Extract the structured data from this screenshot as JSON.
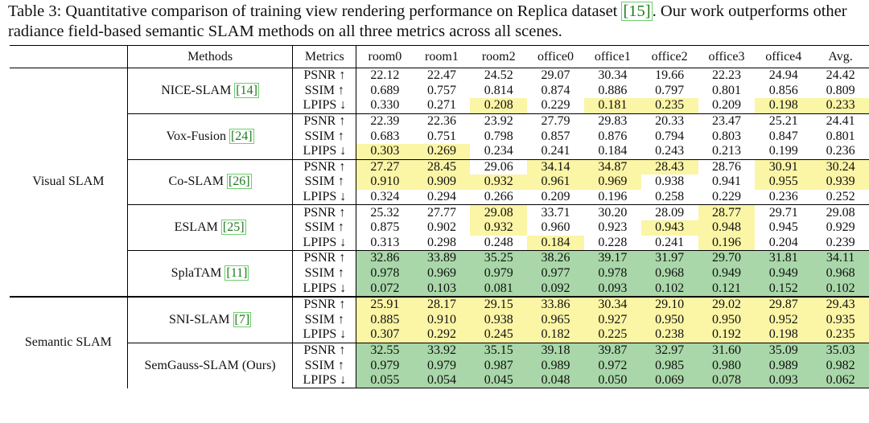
{
  "caption": {
    "prefix": "Table 3: Quantitative comparison of training view rendering performance on Replica dataset ",
    "ref": "[15]",
    "suffix": ". Our work outperforms other radiance field-based semantic SLAM methods on all three metrics across all scenes."
  },
  "headers": {
    "group": "",
    "methods": "Methods",
    "metrics": "Metrics",
    "scenes": [
      "room0",
      "room1",
      "room2",
      "office0",
      "office1",
      "office2",
      "office3",
      "office4",
      "Avg."
    ]
  },
  "metric_labels": [
    "PSNR ↑",
    "SSIM ↑",
    "LPIPS ↓"
  ],
  "groups": [
    {
      "name": "Visual SLAM",
      "methods": [
        {
          "name": "NICE-SLAM",
          "ref": "[14]",
          "rows": [
            {
              "values": [
                "22.12",
                "22.47",
                "24.52",
                "29.07",
                "30.34",
                "19.66",
                "22.23",
                "24.94",
                "24.42"
              ],
              "hl": [
                "",
                "",
                "",
                "",
                "",
                "",
                "",
                "",
                ""
              ]
            },
            {
              "values": [
                "0.689",
                "0.757",
                "0.814",
                "0.874",
                "0.886",
                "0.797",
                "0.801",
                "0.856",
                "0.809"
              ],
              "hl": [
                "",
                "",
                "",
                "",
                "",
                "",
                "",
                "",
                ""
              ]
            },
            {
              "values": [
                "0.330",
                "0.271",
                "0.208",
                "0.229",
                "0.181",
                "0.235",
                "0.209",
                "0.198",
                "0.233"
              ],
              "hl": [
                "",
                "",
                "y",
                "",
                "y",
                "y",
                "",
                "y",
                "y"
              ]
            }
          ]
        },
        {
          "name": "Vox-Fusion",
          "ref": "[24]",
          "rows": [
            {
              "values": [
                "22.39",
                "22.36",
                "23.92",
                "27.79",
                "29.83",
                "20.33",
                "23.47",
                "25.21",
                "24.41"
              ],
              "hl": [
                "",
                "",
                "",
                "",
                "",
                "",
                "",
                "",
                ""
              ]
            },
            {
              "values": [
                "0.683",
                "0.751",
                "0.798",
                "0.857",
                "0.876",
                "0.794",
                "0.803",
                "0.847",
                "0.801"
              ],
              "hl": [
                "",
                "",
                "",
                "",
                "",
                "",
                "",
                "",
                ""
              ]
            },
            {
              "values": [
                "0.303",
                "0.269",
                "0.234",
                "0.241",
                "0.184",
                "0.243",
                "0.213",
                "0.199",
                "0.236"
              ],
              "hl": [
                "y",
                "y",
                "",
                "",
                "",
                "",
                "",
                "",
                ""
              ]
            }
          ]
        },
        {
          "name": "Co-SLAM",
          "ref": "[26]",
          "rows": [
            {
              "values": [
                "27.27",
                "28.45",
                "29.06",
                "34.14",
                "34.87",
                "28.43",
                "28.76",
                "30.91",
                "30.24"
              ],
              "hl": [
                "y",
                "y",
                "",
                "y",
                "y",
                "y",
                "",
                "y",
                "y"
              ]
            },
            {
              "values": [
                "0.910",
                "0.909",
                "0.932",
                "0.961",
                "0.969",
                "0.938",
                "0.941",
                "0.955",
                "0.939"
              ],
              "hl": [
                "y",
                "y",
                "y",
                "y",
                "y",
                "",
                "",
                "y",
                "y"
              ]
            },
            {
              "values": [
                "0.324",
                "0.294",
                "0.266",
                "0.209",
                "0.196",
                "0.258",
                "0.229",
                "0.236",
                "0.252"
              ],
              "hl": [
                "",
                "",
                "",
                "",
                "",
                "",
                "",
                "",
                ""
              ]
            }
          ]
        },
        {
          "name": "ESLAM",
          "ref": "[25]",
          "rows": [
            {
              "values": [
                "25.32",
                "27.77",
                "29.08",
                "33.71",
                "30.20",
                "28.09",
                "28.77",
                "29.71",
                "29.08"
              ],
              "hl": [
                "",
                "",
                "y",
                "",
                "",
                "",
                "y",
                "",
                ""
              ]
            },
            {
              "values": [
                "0.875",
                "0.902",
                "0.932",
                "0.960",
                "0.923",
                "0.943",
                "0.948",
                "0.945",
                "0.929"
              ],
              "hl": [
                "",
                "",
                "y",
                "",
                "",
                "y",
                "y",
                "",
                ""
              ]
            },
            {
              "values": [
                "0.313",
                "0.298",
                "0.248",
                "0.184",
                "0.228",
                "0.241",
                "0.196",
                "0.204",
                "0.239"
              ],
              "hl": [
                "",
                "",
                "",
                "y",
                "",
                "",
                "y",
                "",
                ""
              ]
            }
          ]
        },
        {
          "name": "SplaTAM",
          "ref": "[11]",
          "rows": [
            {
              "values": [
                "32.86",
                "33.89",
                "35.25",
                "38.26",
                "39.17",
                "31.97",
                "29.70",
                "31.81",
                "34.11"
              ],
              "hl": [
                "g",
                "g",
                "g",
                "g",
                "g",
                "g",
                "g",
                "g",
                "g"
              ]
            },
            {
              "values": [
                "0.978",
                "0.969",
                "0.979",
                "0.977",
                "0.978",
                "0.968",
                "0.949",
                "0.949",
                "0.968"
              ],
              "hl": [
                "g",
                "g",
                "g",
                "g",
                "g",
                "g",
                "g",
                "g",
                "g"
              ]
            },
            {
              "values": [
                "0.072",
                "0.103",
                "0.081",
                "0.092",
                "0.093",
                "0.102",
                "0.121",
                "0.152",
                "0.102"
              ],
              "hl": [
                "g",
                "g",
                "g",
                "g",
                "g",
                "g",
                "g",
                "g",
                "g"
              ]
            }
          ]
        }
      ]
    },
    {
      "name": "Semantic SLAM",
      "methods": [
        {
          "name": "SNI-SLAM",
          "ref": "[7]",
          "rows": [
            {
              "values": [
                "25.91",
                "28.17",
                "29.15",
                "33.86",
                "30.34",
                "29.10",
                "29.02",
                "29.87",
                "29.43"
              ],
              "hl": [
                "y",
                "y",
                "y",
                "y",
                "y",
                "y",
                "y",
                "y",
                "y"
              ]
            },
            {
              "values": [
                "0.885",
                "0.910",
                "0.938",
                "0.965",
                "0.927",
                "0.950",
                "0.950",
                "0.952",
                "0.935"
              ],
              "hl": [
                "y",
                "y",
                "y",
                "y",
                "y",
                "y",
                "y",
                "y",
                "y"
              ]
            },
            {
              "values": [
                "0.307",
                "0.292",
                "0.245",
                "0.182",
                "0.225",
                "0.238",
                "0.192",
                "0.198",
                "0.235"
              ],
              "hl": [
                "y",
                "y",
                "y",
                "y",
                "y",
                "y",
                "y",
                "y",
                "y"
              ]
            }
          ]
        },
        {
          "name": "SemGauss-SLAM (Ours)",
          "ref": "",
          "rows": [
            {
              "values": [
                "32.55",
                "33.92",
                "35.15",
                "39.18",
                "39.87",
                "32.97",
                "31.60",
                "35.09",
                "35.03"
              ],
              "hl": [
                "g",
                "g",
                "g",
                "g",
                "g",
                "g",
                "g",
                "g",
                "g"
              ]
            },
            {
              "values": [
                "0.979",
                "0.979",
                "0.987",
                "0.989",
                "0.972",
                "0.985",
                "0.980",
                "0.989",
                "0.982"
              ],
              "hl": [
                "g",
                "g",
                "g",
                "g",
                "g",
                "g",
                "g",
                "g",
                "g"
              ]
            },
            {
              "values": [
                "0.055",
                "0.054",
                "0.045",
                "0.048",
                "0.050",
                "0.069",
                "0.078",
                "0.093",
                "0.062"
              ],
              "hl": [
                "g",
                "g",
                "g",
                "g",
                "g",
                "g",
                "g",
                "g",
                "g"
              ]
            }
          ]
        }
      ]
    }
  ]
}
